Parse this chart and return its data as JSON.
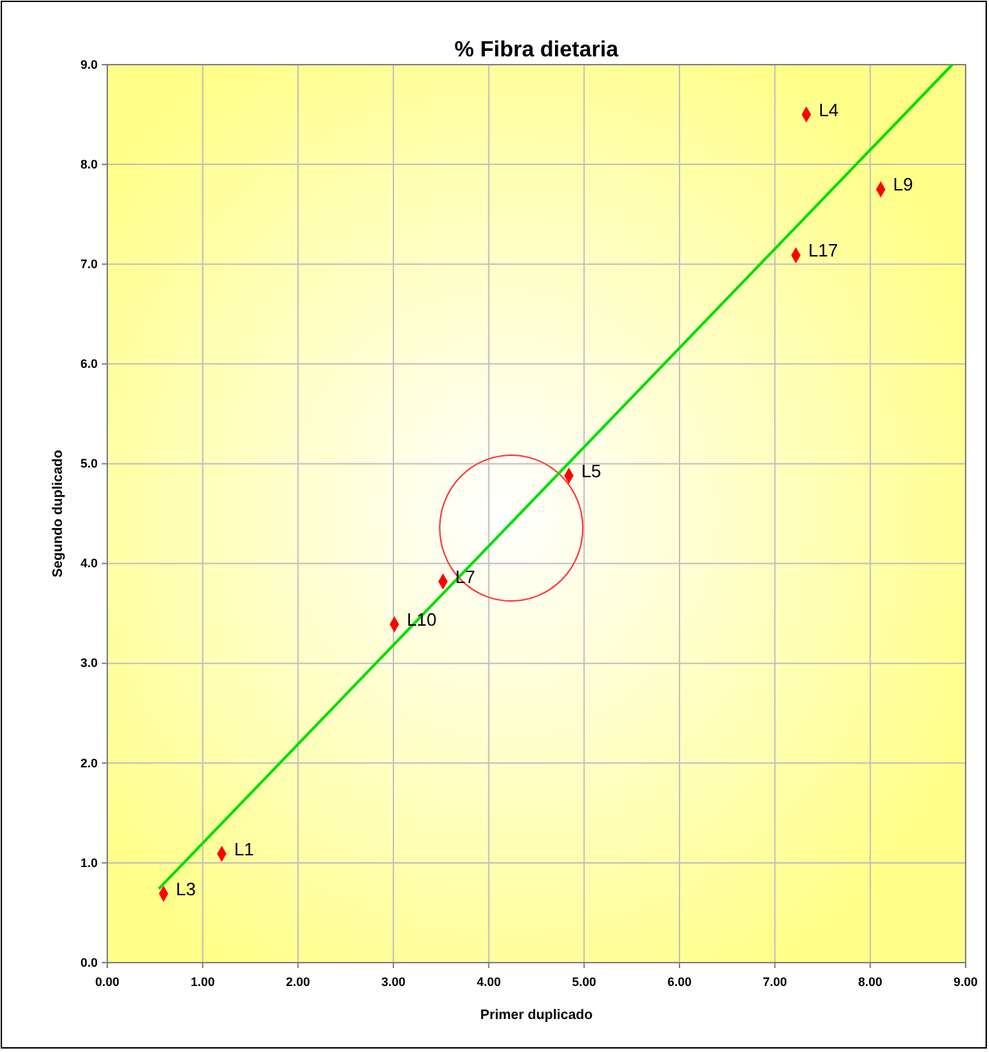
{
  "chart_data": {
    "type": "scatter",
    "title": "% Fibra dietaria",
    "xlabel": "Primer duplicado",
    "ylabel": "Segundo duplicado",
    "xlim": [
      0,
      9
    ],
    "ylim": [
      0,
      9
    ],
    "xticks": [
      {
        "value": 0,
        "label": "0.00"
      },
      {
        "value": 1,
        "label": "1.00"
      },
      {
        "value": 2,
        "label": "2.00"
      },
      {
        "value": 3,
        "label": "3.00"
      },
      {
        "value": 4,
        "label": "4.00"
      },
      {
        "value": 5,
        "label": "5.00"
      },
      {
        "value": 6,
        "label": "6.00"
      },
      {
        "value": 7,
        "label": "7.00"
      },
      {
        "value": 8,
        "label": "8.00"
      },
      {
        "value": 9,
        "label": "9.00"
      }
    ],
    "yticks": [
      {
        "value": 0,
        "label": "0.0"
      },
      {
        "value": 1,
        "label": "1.0"
      },
      {
        "value": 2,
        "label": "2.0"
      },
      {
        "value": 3,
        "label": "3.0"
      },
      {
        "value": 4,
        "label": "4.0"
      },
      {
        "value": 5,
        "label": "5.0"
      },
      {
        "value": 6,
        "label": "6.0"
      },
      {
        "value": 7,
        "label": "7.0"
      },
      {
        "value": 8,
        "label": "8.0"
      },
      {
        "value": 9,
        "label": "9.0"
      }
    ],
    "grid": true,
    "series": [
      {
        "color": "#ff0000",
        "marker": "diamond",
        "x": [
          7.33,
          8.11,
          7.22,
          4.84,
          3.52,
          3.01,
          1.2,
          0.59
        ],
        "values": [
          8.5,
          7.75,
          7.09,
          4.88,
          3.82,
          3.39,
          1.09,
          0.69
        ]
      },
      {
        "type": "line",
        "color": "#00e000",
        "marker": "none",
        "x": [
          0.54,
          8.86
        ],
        "values": [
          0.74,
          9.0
        ]
      }
    ],
    "annotations": [
      {
        "text": "L4",
        "x": 7.33,
        "y": 8.5
      },
      {
        "text": "L9",
        "x": 8.11,
        "y": 7.75
      },
      {
        "text": "L17",
        "x": 7.22,
        "y": 7.09
      },
      {
        "text": "L5",
        "x": 4.84,
        "y": 4.88
      },
      {
        "text": "L7",
        "x": 3.52,
        "y": 3.82
      },
      {
        "text": "L10",
        "x": 3.01,
        "y": 3.39
      },
      {
        "text": "L1",
        "x": 1.2,
        "y": 1.09
      },
      {
        "text": "L3",
        "x": 0.59,
        "y": 0.69
      }
    ]
  }
}
